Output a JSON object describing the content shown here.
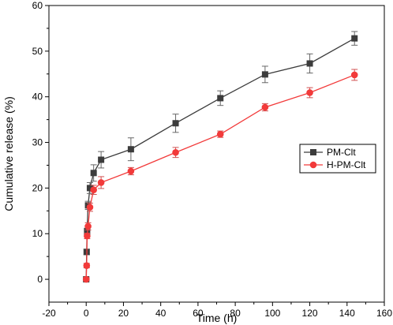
{
  "chart_data": {
    "type": "line",
    "title": "",
    "xlabel": "Time (h)",
    "ylabel": "Cumulative release (%)",
    "xlim": [
      -20,
      160
    ],
    "ylim": [
      -5,
      60
    ],
    "xticks": [
      -20,
      0,
      20,
      40,
      60,
      80,
      100,
      120,
      140,
      160
    ],
    "yticks": [
      0,
      10,
      20,
      30,
      40,
      50,
      60
    ],
    "grid": false,
    "legend_position": "right",
    "series": [
      {
        "name": "PM-Clt",
        "color": "#3c3c3c",
        "marker": "square",
        "x": [
          0,
          0.25,
          0.5,
          1,
          2,
          4,
          8,
          24,
          48,
          72,
          96,
          120,
          144
        ],
        "y": [
          0,
          6,
          10.5,
          16.2,
          20,
          23.3,
          26.2,
          28.5,
          34.2,
          39.7,
          44.9,
          47.3,
          52.8
        ],
        "err": [
          0.3,
          0.6,
          0.7,
          0.9,
          1.2,
          1.8,
          1.8,
          2.5,
          2.0,
          1.6,
          1.8,
          2.1,
          1.5
        ]
      },
      {
        "name": "H-PM-Clt",
        "color": "#f23a3a",
        "marker": "circle",
        "x": [
          0,
          0.25,
          0.5,
          1,
          2,
          4,
          8,
          24,
          48,
          72,
          96,
          120,
          144
        ],
        "y": [
          0,
          3,
          9.5,
          11.6,
          15.8,
          19.6,
          21.2,
          23.7,
          27.8,
          31.8,
          37.7,
          40.9,
          44.8
        ],
        "err": [
          0.3,
          0.5,
          0.6,
          0.8,
          0.9,
          1.0,
          1.3,
          0.8,
          1.1,
          0.7,
          0.8,
          1.1,
          1.2
        ]
      }
    ]
  }
}
